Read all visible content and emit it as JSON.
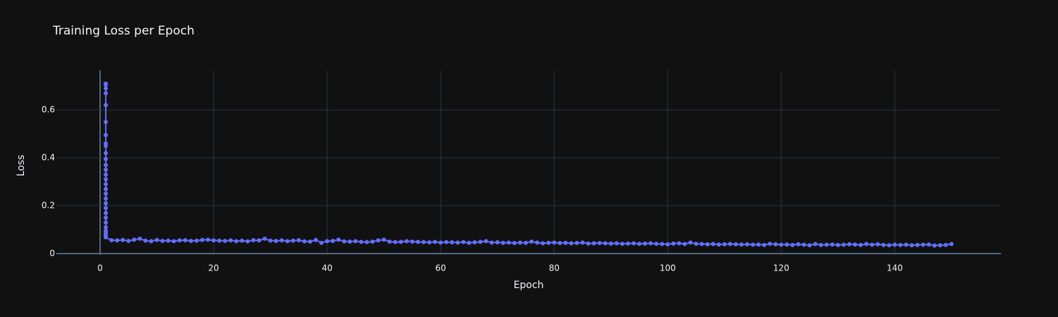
{
  "chart_data": {
    "type": "line",
    "title": "Training Loss per Epoch",
    "x_label": "Epoch",
    "y_label": "Loss",
    "color": "#636efa",
    "grid": true,
    "xlim": [
      -7.7,
      158.7
    ],
    "ylim": [
      -0.005,
      0.765
    ],
    "xticks": [
      0,
      20,
      40,
      60,
      80,
      100,
      120,
      140
    ],
    "yticks": [
      0,
      0.2,
      0.4,
      0.6
    ],
    "x": [
      1,
      1,
      1,
      1,
      1,
      1,
      1,
      1,
      1,
      1,
      1,
      1,
      1,
      1,
      1,
      1,
      1,
      1,
      1,
      1,
      1,
      1,
      1,
      1,
      1,
      1,
      1,
      1,
      1,
      2,
      3,
      4,
      5,
      6,
      7,
      8,
      9,
      10,
      11,
      12,
      13,
      14,
      15,
      16,
      17,
      18,
      19,
      20,
      21,
      22,
      23,
      24,
      25,
      26,
      27,
      28,
      29,
      30,
      31,
      32,
      33,
      34,
      35,
      36,
      37,
      38,
      39,
      40,
      41,
      42,
      43,
      44,
      45,
      46,
      47,
      48,
      49,
      50,
      51,
      52,
      53,
      54,
      55,
      56,
      57,
      58,
      59,
      60,
      61,
      62,
      63,
      64,
      65,
      66,
      67,
      68,
      69,
      70,
      71,
      72,
      73,
      74,
      75,
      76,
      77,
      78,
      79,
      80,
      81,
      82,
      83,
      84,
      85,
      86,
      87,
      88,
      89,
      90,
      91,
      92,
      93,
      94,
      95,
      96,
      97,
      98,
      99,
      100,
      101,
      102,
      103,
      104,
      105,
      106,
      107,
      108,
      109,
      110,
      111,
      112,
      113,
      114,
      115,
      116,
      117,
      118,
      119,
      120,
      121,
      122,
      123,
      124,
      125,
      126,
      127,
      128,
      129,
      130,
      131,
      132,
      133,
      134,
      135,
      136,
      137,
      138,
      139,
      140,
      141,
      142,
      143,
      144,
      145,
      146,
      147,
      148,
      149,
      150
    ],
    "values": [
      0.71,
      0.705,
      0.69,
      0.67,
      0.62,
      0.55,
      0.495,
      0.46,
      0.45,
      0.42,
      0.395,
      0.37,
      0.35,
      0.33,
      0.31,
      0.29,
      0.27,
      0.25,
      0.23,
      0.21,
      0.19,
      0.17,
      0.15,
      0.13,
      0.11,
      0.095,
      0.085,
      0.075,
      0.068,
      0.056,
      0.055,
      0.057,
      0.053,
      0.058,
      0.062,
      0.054,
      0.052,
      0.057,
      0.053,
      0.054,
      0.052,
      0.055,
      0.056,
      0.053,
      0.054,
      0.057,
      0.058,
      0.055,
      0.054,
      0.053,
      0.055,
      0.052,
      0.054,
      0.051,
      0.056,
      0.055,
      0.062,
      0.054,
      0.053,
      0.055,
      0.052,
      0.054,
      0.056,
      0.051,
      0.05,
      0.057,
      0.045,
      0.052,
      0.053,
      0.058,
      0.051,
      0.05,
      0.052,
      0.049,
      0.048,
      0.05,
      0.055,
      0.058,
      0.05,
      0.048,
      0.049,
      0.052,
      0.05,
      0.049,
      0.048,
      0.047,
      0.049,
      0.046,
      0.048,
      0.047,
      0.046,
      0.048,
      0.045,
      0.047,
      0.049,
      0.052,
      0.046,
      0.047,
      0.045,
      0.046,
      0.044,
      0.046,
      0.045,
      0.05,
      0.046,
      0.043,
      0.045,
      0.046,
      0.044,
      0.045,
      0.043,
      0.044,
      0.046,
      0.042,
      0.043,
      0.044,
      0.043,
      0.042,
      0.043,
      0.041,
      0.042,
      0.043,
      0.041,
      0.042,
      0.043,
      0.041,
      0.04,
      0.039,
      0.042,
      0.043,
      0.04,
      0.046,
      0.041,
      0.04,
      0.039,
      0.04,
      0.038,
      0.039,
      0.04,
      0.039,
      0.038,
      0.039,
      0.037,
      0.038,
      0.036,
      0.041,
      0.039,
      0.037,
      0.038,
      0.036,
      0.039,
      0.037,
      0.035,
      0.04,
      0.036,
      0.037,
      0.038,
      0.036,
      0.037,
      0.039,
      0.038,
      0.036,
      0.04,
      0.037,
      0.039,
      0.036,
      0.035,
      0.037,
      0.036,
      0.037,
      0.035,
      0.036,
      0.037,
      0.038,
      0.034,
      0.035,
      0.036,
      0.04
    ]
  }
}
